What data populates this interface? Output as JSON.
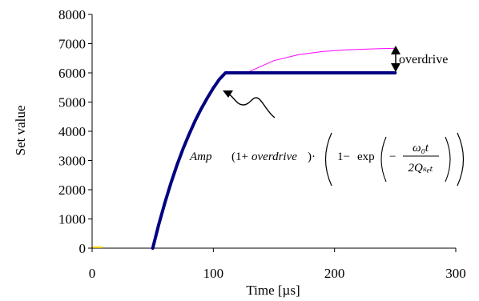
{
  "chart_data": {
    "type": "line",
    "xlabel": "Time [µs]",
    "ylabel": "Set value",
    "xlim": [
      0,
      300
    ],
    "ylim": [
      0,
      8000
    ],
    "xticks": [
      0,
      100,
      200,
      300
    ],
    "yticks": [
      0,
      1000,
      2000,
      3000,
      4000,
      5000,
      6000,
      7000,
      8000
    ],
    "grid": false,
    "legend": "none",
    "series": [
      {
        "color": "#ff00ff",
        "x": [
          130,
          150,
          170,
          190,
          210,
          230,
          250
        ],
        "y": [
          6050,
          6420,
          6620,
          6730,
          6790,
          6820,
          6840
        ]
      },
      {
        "color": "#000080",
        "x": [
          50,
          55,
          60,
          65,
          70,
          75,
          80,
          85,
          90,
          95,
          100,
          105,
          110,
          115,
          120,
          125,
          130,
          250
        ],
        "y": [
          0,
          810,
          1550,
          2230,
          2840,
          3400,
          3900,
          4360,
          4770,
          5140,
          5480,
          5780,
          6000,
          6000,
          6000,
          6000,
          6000,
          6000
        ]
      },
      {
        "color": "#ffd700",
        "x": [
          1,
          8
        ],
        "y": [
          30,
          30
        ]
      }
    ],
    "annotations": {
      "overdrive_label": "overdrive",
      "formula": {
        "amp": "Amp",
        "one_plus": "(1+",
        "overdrive": "overdrive",
        "close_dot": ")·",
        "one_minus": "1−",
        "exp": "exp",
        "minus": "−",
        "numerator": "ω₀t",
        "denominator": "2Qₛₑₜ"
      }
    }
  }
}
